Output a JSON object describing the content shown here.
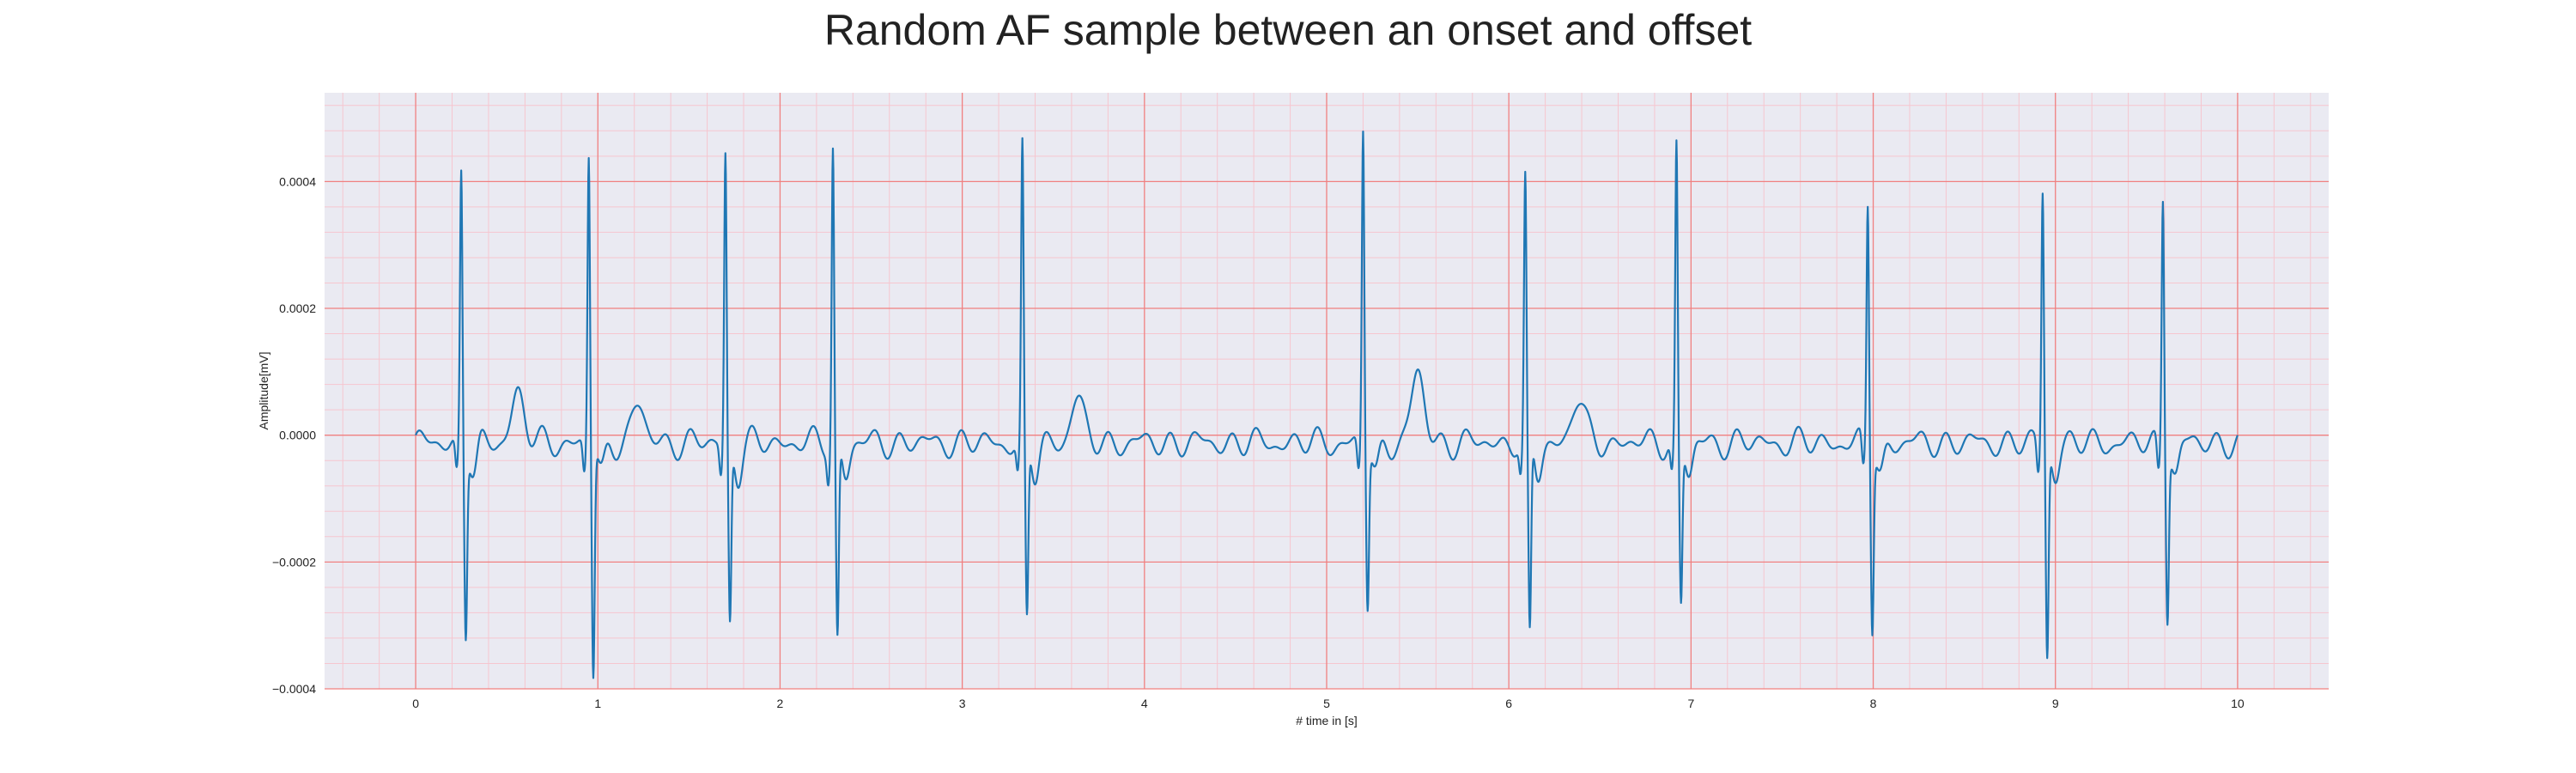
{
  "chart_data": {
    "type": "line",
    "title": "Random AF sample between an onset and offset",
    "xlabel": "# time in [s]",
    "ylabel": "Amplitude[mV]",
    "xlim": [
      -0.5,
      10.5
    ],
    "ylim": [
      -0.0004,
      0.00054
    ],
    "xticks": [
      0,
      1,
      2,
      3,
      4,
      5,
      6,
      7,
      8,
      9,
      10
    ],
    "xtick_labels": [
      "0",
      "1",
      "2",
      "3",
      "4",
      "5",
      "6",
      "7",
      "8",
      "9",
      "10"
    ],
    "yticks": [
      -0.0004,
      -0.0002,
      0.0,
      0.0002,
      0.0004
    ],
    "ytick_labels": [
      "−0.0004",
      "−0.0002",
      "0.0000",
      "0.0002",
      "0.0004"
    ],
    "grid": true,
    "minor_grid": true,
    "colors": {
      "background": "#eaeaf2",
      "major_grid": "#f08080",
      "minor_grid": "#f6c6cf",
      "line": "#1f77b4"
    },
    "series": [
      {
        "beats": [
          {
            "t": 0.25,
            "r": 0.00043,
            "s": -0.00029
          },
          {
            "t": 0.95,
            "r": 0.000455,
            "s": -0.00036
          },
          {
            "t": 1.7,
            "r": 0.000455,
            "s": -0.00028
          },
          {
            "t": 2.29,
            "r": 0.000465,
            "s": -0.00031
          },
          {
            "t": 3.33,
            "r": 0.00046,
            "s": -0.00028
          },
          {
            "t": 5.2,
            "r": 0.000495,
            "s": -0.00025
          },
          {
            "t": 6.09,
            "r": 0.000405,
            "s": -0.00031
          },
          {
            "t": 6.92,
            "r": 0.000465,
            "s": -0.00025
          },
          {
            "t": 7.97,
            "r": 0.00038,
            "s": -0.00028
          },
          {
            "t": 8.93,
            "r": 0.0004,
            "s": -0.00033
          },
          {
            "t": 9.59,
            "r": 0.000395,
            "s": -0.00026
          }
        ],
        "t_waves": [
          {
            "t": 0.56,
            "a": 8e-05
          },
          {
            "t": 1.22,
            "a": 6e-05
          },
          {
            "t": 3.63,
            "a": 7e-05
          },
          {
            "t": 5.5,
            "a": 0.00011
          },
          {
            "t": 6.38,
            "a": 7e-05
          }
        ],
        "fibrillatory_amplitude": 2e-05,
        "t_start": 0.0,
        "t_end": 10.0
      }
    ]
  }
}
